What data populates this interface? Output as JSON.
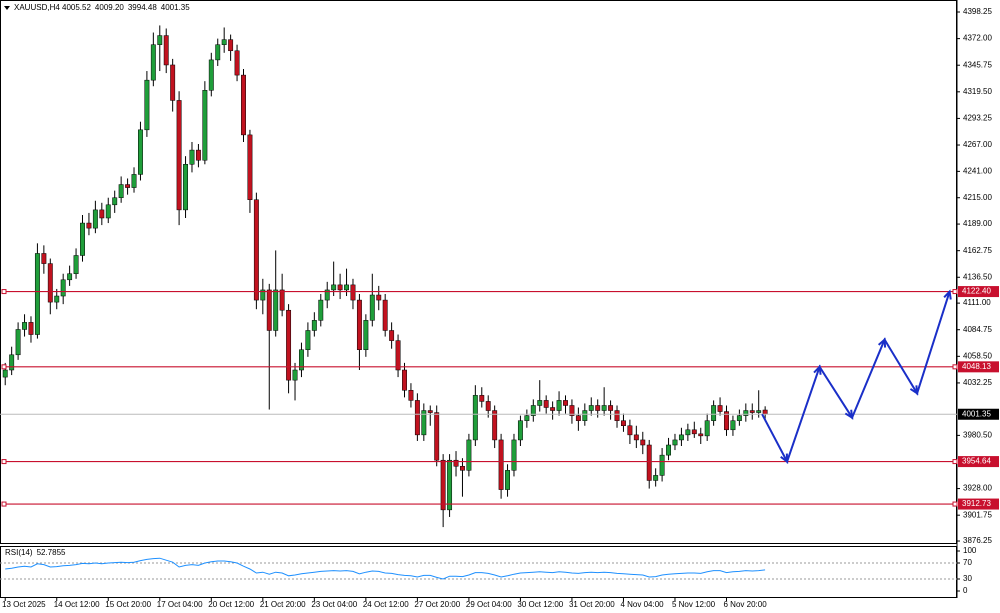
{
  "chart_data": {
    "type": "candlestick",
    "title": "XAUUSD,H4",
    "ohlc_labels": [
      "4005.52",
      "4009.20",
      "3994.48",
      "4001.35"
    ],
    "categories": [
      "13 Oct 2025",
      null,
      null,
      null,
      null,
      null,
      null,
      null,
      "14 Oct 12:00",
      null,
      null,
      null,
      null,
      null,
      null,
      null,
      "15 Oct 20:00",
      null,
      null,
      null,
      null,
      null,
      null,
      null,
      "17 Oct 04:00",
      null,
      null,
      null,
      null,
      null,
      null,
      null,
      "20 Oct 12:00",
      null,
      null,
      null,
      null,
      null,
      null,
      null,
      "21 Oct 20:00",
      null,
      null,
      null,
      null,
      null,
      null,
      null,
      "23 Oct 04:00",
      null,
      null,
      null,
      null,
      null,
      null,
      null,
      "24 Oct 12:00",
      null,
      null,
      null,
      null,
      null,
      null,
      null,
      "27 Oct 20:00",
      null,
      null,
      null,
      null,
      null,
      null,
      null,
      "29 Oct 04:00",
      null,
      null,
      null,
      null,
      null,
      null,
      null,
      "30 Oct 12:00",
      null,
      null,
      null,
      null,
      null,
      null,
      null,
      "31 Oct 20:00",
      null,
      null,
      null,
      null,
      null,
      null,
      null,
      "4 Nov 04:00",
      null,
      null,
      null,
      null,
      null,
      null,
      null,
      "5 Nov 12:00",
      null,
      null,
      null,
      null,
      null,
      null,
      null,
      "6 Nov 20:00",
      null,
      null,
      null,
      null,
      null,
      null
    ],
    "ohlc": [
      [
        4038,
        4052,
        4030,
        4045
      ],
      [
        4045,
        4068,
        4040,
        4060
      ],
      [
        4060,
        4092,
        4055,
        4085
      ],
      [
        4085,
        4100,
        4078,
        4092
      ],
      [
        4092,
        4098,
        4072,
        4080
      ],
      [
        4080,
        4170,
        4076,
        4160
      ],
      [
        4160,
        4168,
        4140,
        4150
      ],
      [
        4150,
        4155,
        4100,
        4112
      ],
      [
        4112,
        4125,
        4105,
        4118
      ],
      [
        4118,
        4140,
        4110,
        4134
      ],
      [
        4134,
        4148,
        4128,
        4140
      ],
      [
        4140,
        4165,
        4135,
        4158
      ],
      [
        4158,
        4198,
        4152,
        4190
      ],
      [
        4190,
        4200,
        4178,
        4185
      ],
      [
        4185,
        4212,
        4180,
        4203
      ],
      [
        4203,
        4210,
        4188,
        4195
      ],
      [
        4195,
        4215,
        4190,
        4208
      ],
      [
        4208,
        4222,
        4200,
        4215
      ],
      [
        4215,
        4236,
        4210,
        4228
      ],
      [
        4228,
        4234,
        4218,
        4225
      ],
      [
        4225,
        4245,
        4220,
        4238
      ],
      [
        4238,
        4290,
        4232,
        4282
      ],
      [
        4282,
        4340,
        4275,
        4331
      ],
      [
        4331,
        4378,
        4325,
        4366
      ],
      [
        4366,
        4385,
        4340,
        4375
      ],
      [
        4375,
        4382,
        4338,
        4346
      ],
      [
        4346,
        4352,
        4300,
        4311
      ],
      [
        4311,
        4320,
        4188,
        4203
      ],
      [
        4203,
        4256,
        4195,
        4248
      ],
      [
        4248,
        4270,
        4240,
        4262
      ],
      [
        4262,
        4268,
        4245,
        4252
      ],
      [
        4252,
        4330,
        4248,
        4321
      ],
      [
        4321,
        4358,
        4315,
        4351
      ],
      [
        4351,
        4372,
        4345,
        4366
      ],
      [
        4366,
        4383,
        4358,
        4371
      ],
      [
        4371,
        4376,
        4350,
        4360
      ],
      [
        4360,
        4366,
        4330,
        4336
      ],
      [
        4336,
        4342,
        4270,
        4277
      ],
      [
        4277,
        4282,
        4200,
        4213
      ],
      [
        4213,
        4220,
        4105,
        4114
      ],
      [
        4114,
        4135,
        4100,
        4124
      ],
      [
        4124,
        4130,
        4006,
        4084
      ],
      [
        4084,
        4163,
        4078,
        4124
      ],
      [
        4124,
        4140,
        4098,
        4104
      ],
      [
        4104,
        4110,
        4022,
        4035
      ],
      [
        4035,
        4052,
        4015,
        4045
      ],
      [
        4045,
        4072,
        4038,
        4065
      ],
      [
        4065,
        4092,
        4058,
        4084
      ],
      [
        4084,
        4102,
        4078,
        4094
      ],
      [
        4094,
        4120,
        4088,
        4114
      ],
      [
        4114,
        4132,
        4106,
        4124
      ],
      [
        4124,
        4152,
        4118,
        4129
      ],
      [
        4129,
        4140,
        4115,
        4124
      ],
      [
        4124,
        4145,
        4118,
        4129
      ],
      [
        4129,
        4135,
        4105,
        4114
      ],
      [
        4114,
        4120,
        4045,
        4065
      ],
      [
        4065,
        4100,
        4058,
        4094
      ],
      [
        4094,
        4140,
        4088,
        4119
      ],
      [
        4119,
        4128,
        4104,
        4114
      ],
      [
        4114,
        4120,
        4078,
        4084
      ],
      [
        4084,
        4092,
        4066,
        4074
      ],
      [
        4074,
        4080,
        4038,
        4045
      ],
      [
        4045,
        4052,
        4018,
        4025
      ],
      [
        4025,
        4032,
        4008,
        4015
      ],
      [
        4015,
        4022,
        3975,
        3981
      ],
      [
        3981,
        4012,
        3975,
        4005
      ],
      [
        4005,
        4010,
        3990,
        4003
      ],
      [
        4003,
        4010,
        3950,
        3956
      ],
      [
        3956,
        3962,
        3890,
        3907
      ],
      [
        3907,
        3962,
        3900,
        3956
      ],
      [
        3956,
        3965,
        3940,
        3950
      ],
      [
        3950,
        3958,
        3920,
        3946
      ],
      [
        3946,
        3982,
        3940,
        3976
      ],
      [
        3976,
        4030,
        3970,
        4020
      ],
      [
        4020,
        4028,
        4008,
        4014
      ],
      [
        4014,
        4020,
        3998,
        4005
      ],
      [
        4005,
        4010,
        3968,
        3976
      ],
      [
        3976,
        3982,
        3918,
        3927
      ],
      [
        3927,
        3952,
        3920,
        3946
      ],
      [
        3946,
        3982,
        3940,
        3976
      ],
      [
        3976,
        4000,
        3970,
        3995
      ],
      [
        3995,
        4006,
        3988,
        4000
      ],
      [
        4000,
        4016,
        3994,
        4010
      ],
      [
        4010,
        4035,
        4004,
        4015
      ],
      [
        4015,
        4020,
        4002,
        4008
      ],
      [
        4008,
        4014,
        3996,
        4005
      ],
      [
        4005,
        4024,
        4000,
        4015
      ],
      [
        4015,
        4020,
        4002,
        4010
      ],
      [
        4010,
        4016,
        3992,
        4000
      ],
      [
        4000,
        4008,
        3985,
        3995
      ],
      [
        3995,
        4012,
        3990,
        4005
      ],
      [
        4005,
        4018,
        4000,
        4010
      ],
      [
        4010,
        4016,
        3998,
        4005
      ],
      [
        4005,
        4028,
        4000,
        4010
      ],
      [
        4010,
        4015,
        3996,
        4005
      ],
      [
        4005,
        4010,
        3988,
        3995
      ],
      [
        3995,
        4002,
        3984,
        3990
      ],
      [
        3990,
        3996,
        3972,
        3981
      ],
      [
        3981,
        3990,
        3968,
        3976
      ],
      [
        3976,
        3984,
        3962,
        3971
      ],
      [
        3971,
        3976,
        3928,
        3936
      ],
      [
        3936,
        3948,
        3930,
        3941
      ],
      [
        3941,
        3968,
        3935,
        3961
      ],
      [
        3961,
        3978,
        3956,
        3971
      ],
      [
        3971,
        3982,
        3966,
        3976
      ],
      [
        3976,
        3988,
        3970,
        3981
      ],
      [
        3981,
        3992,
        3975,
        3986
      ],
      [
        3986,
        3994,
        3978,
        3982
      ],
      [
        3982,
        3988,
        3972,
        3980
      ],
      [
        3980,
        4002,
        3975,
        3995
      ],
      [
        3995,
        4015,
        3990,
        4010
      ],
      [
        4010,
        4018,
        4000,
        4004
      ],
      [
        4004,
        4010,
        3980,
        3986
      ],
      [
        3986,
        4000,
        3980,
        3995
      ],
      [
        3995,
        4006,
        3990,
        4000
      ],
      [
        4000,
        4012,
        3994,
        4005
      ],
      [
        4005,
        4012,
        3996,
        4003
      ],
      [
        4003,
        4025,
        3998,
        4005
      ],
      [
        4005.52,
        4009.2,
        3994.48,
        4001.35
      ]
    ],
    "up_color": "#1f9e3a",
    "down_color": "#c1121f",
    "ylim": [
      3874.3,
      4410.1
    ],
    "yticks": [
      4398.25,
      {
        "value": 4372,
        "label": "4372.00"
      },
      4345.75,
      {
        "value": 4319.5,
        "label": "4319.50"
      },
      4293.25,
      {
        "value": 4267,
        "label": "4267.00"
      },
      {
        "value": 4241,
        "label": "4241.00"
      },
      {
        "value": 4215,
        "label": "4215.00"
      },
      {
        "value": 4189,
        "label": "4189.00"
      },
      4162.75,
      {
        "value": 4136.5,
        "label": "4136.50"
      },
      {
        "value": 4111,
        "label": "4111.00"
      },
      4084.75,
      {
        "value": 4058.5,
        "label": "4058.50"
      },
      4032.25,
      {
        "value": 3980.5,
        "label": "3980.50"
      },
      {
        "value": 3928,
        "label": "3928.00"
      },
      3901.75,
      3876.25
    ],
    "levels": [
      {
        "value": 4122.4,
        "label": "4122.40"
      },
      4048.13,
      3954.64,
      3912.73
    ],
    "level_color": "#c8102e",
    "price_line": 4001.35,
    "projection": [
      4001.35,
      3954.64,
      4048.13,
      3998,
      4075,
      4022,
      4122.4
    ],
    "projection_color": "#1a2fc8",
    "rsi_title": "RSI(14)",
    "rsi": [
      55,
      57,
      60,
      62,
      60,
      68,
      66,
      60,
      61,
      63,
      64,
      66,
      69,
      68,
      70,
      68,
      70,
      71,
      72,
      71,
      72,
      76,
      79,
      81,
      82,
      77,
      72,
      60,
      64,
      66,
      64,
      70,
      73,
      75,
      75,
      73,
      70,
      62,
      55,
      45,
      47,
      42,
      47,
      45,
      38,
      40,
      43,
      45,
      47,
      49,
      50,
      51,
      50,
      51,
      49,
      43,
      47,
      50,
      49,
      45,
      44,
      41,
      39,
      38,
      35,
      39,
      39,
      34,
      30,
      37,
      37,
      36,
      40,
      46,
      46,
      44,
      40,
      35,
      38,
      42,
      45,
      46,
      47,
      48,
      47,
      46,
      48,
      47,
      45,
      44,
      46,
      47,
      46,
      47,
      46,
      44,
      43,
      42,
      41,
      40,
      35,
      36,
      40,
      42,
      43,
      44,
      45,
      45,
      44,
      48,
      51,
      51,
      46,
      48,
      49,
      51,
      50,
      51,
      52.7855
    ],
    "rsi_color": "#1e90ff",
    "rsi_ylim": [
      0,
      100
    ],
    "rsi_yticks": [
      100,
      70,
      30,
      0
    ]
  }
}
